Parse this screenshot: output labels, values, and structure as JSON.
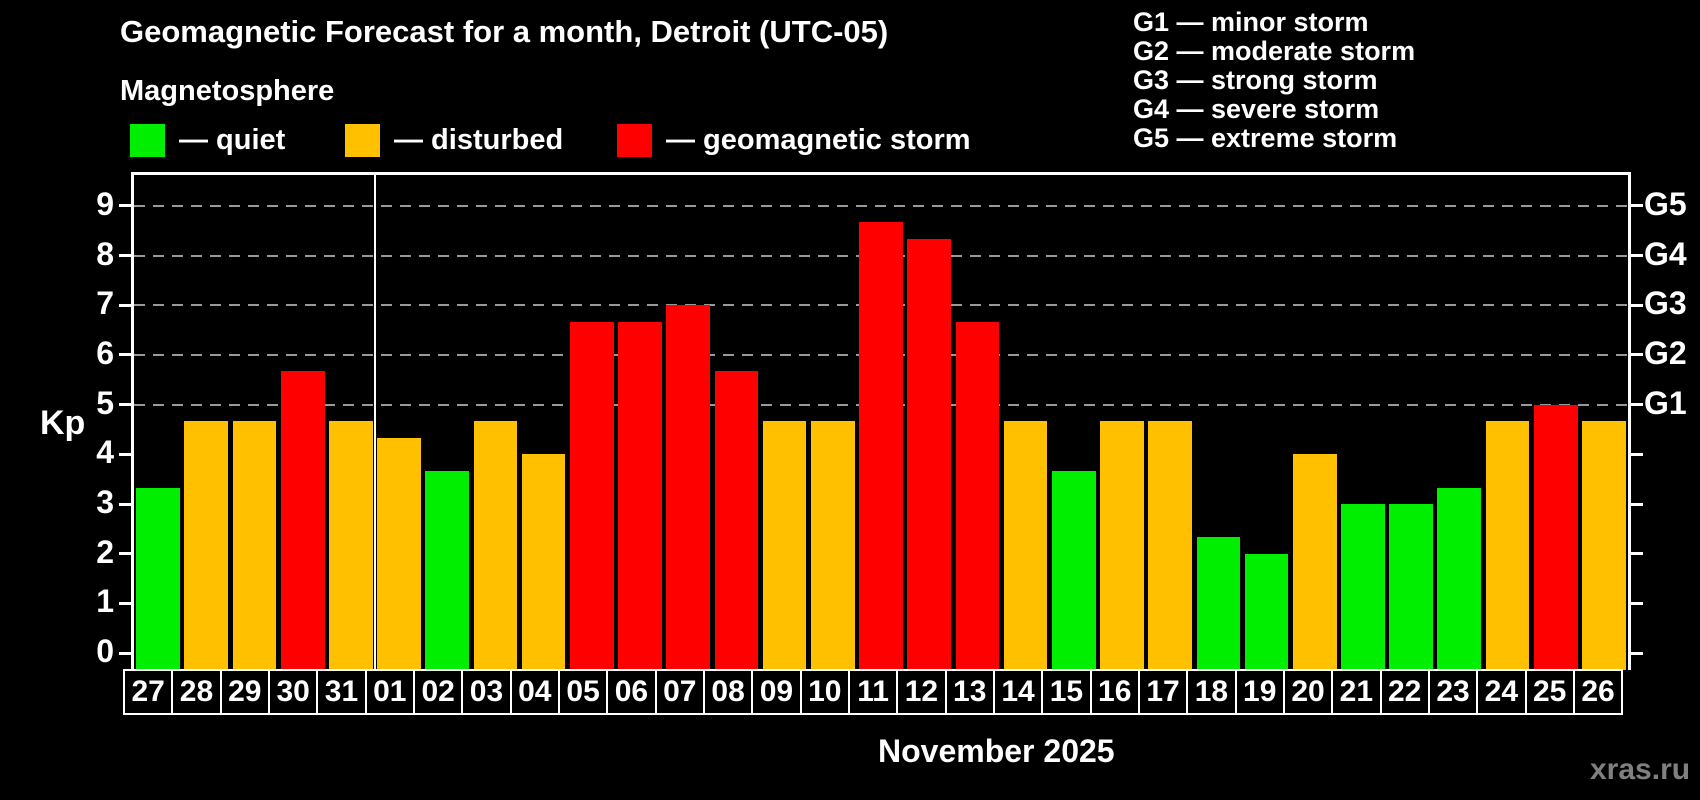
{
  "page": {
    "title": "Geomagnetic Forecast for a month, Detroit (UTC-05)",
    "subtitle": "Magnetosphere",
    "xlabel": "November 2025",
    "watermark": "xras.ru"
  },
  "legend": {
    "items": [
      {
        "state": "quiet",
        "label": "— quiet",
        "color": "#00ee00"
      },
      {
        "state": "disturbed",
        "label": "— disturbed",
        "color": "#ffc000"
      },
      {
        "state": "storm",
        "label": "— geomagnetic storm",
        "color": "#ff0000"
      }
    ]
  },
  "g_scale_legend": {
    "lines": [
      "G1 — minor storm",
      "G2 — moderate storm",
      "G3 — strong storm",
      "G4 — severe storm",
      "G5 — extreme storm"
    ]
  },
  "chart_data": {
    "type": "bar",
    "title": "Geomagnetic Forecast for a month, Detroit (UTC-05)",
    "ylabel": "Kp",
    "xlabel": "November 2025",
    "ylim": [
      0,
      9.6
    ],
    "yticks": [
      0,
      1,
      2,
      3,
      4,
      5,
      6,
      7,
      8,
      9
    ],
    "gridlines_at": [
      5,
      6,
      7,
      8,
      9
    ],
    "grid_style": "dashed",
    "right_axis_labels": [
      {
        "value": 5,
        "label": "G1"
      },
      {
        "value": 6,
        "label": "G2"
      },
      {
        "value": 7,
        "label": "G3"
      },
      {
        "value": 8,
        "label": "G4"
      },
      {
        "value": 9,
        "label": "G5"
      }
    ],
    "categories": [
      "27",
      "28",
      "29",
      "30",
      "31",
      "01",
      "02",
      "03",
      "04",
      "05",
      "06",
      "07",
      "08",
      "09",
      "10",
      "11",
      "12",
      "13",
      "14",
      "15",
      "16",
      "17",
      "18",
      "19",
      "20",
      "21",
      "22",
      "23",
      "24",
      "25",
      "26"
    ],
    "values": [
      3.33,
      4.67,
      4.67,
      5.67,
      4.67,
      4.33,
      3.67,
      4.67,
      4.0,
      6.67,
      6.67,
      7.0,
      5.67,
      4.67,
      4.67,
      8.67,
      8.33,
      6.67,
      4.67,
      3.67,
      4.67,
      4.67,
      2.33,
      2.0,
      4.0,
      3.0,
      3.0,
      3.33,
      4.67,
      5.0,
      4.67
    ],
    "states": [
      "quiet",
      "disturbed",
      "disturbed",
      "storm",
      "disturbed",
      "disturbed",
      "quiet",
      "disturbed",
      "disturbed",
      "storm",
      "storm",
      "storm",
      "storm",
      "disturbed",
      "disturbed",
      "storm",
      "storm",
      "storm",
      "disturbed",
      "quiet",
      "disturbed",
      "disturbed",
      "quiet",
      "quiet",
      "disturbed",
      "quiet",
      "quiet",
      "quiet",
      "disturbed",
      "storm",
      "disturbed"
    ],
    "colors": {
      "quiet": "#00ee00",
      "disturbed": "#ffc000",
      "storm": "#ff0000"
    },
    "month_separator_after_index": 4,
    "grid_color": "#999999",
    "axis_color": "#ffffff"
  }
}
